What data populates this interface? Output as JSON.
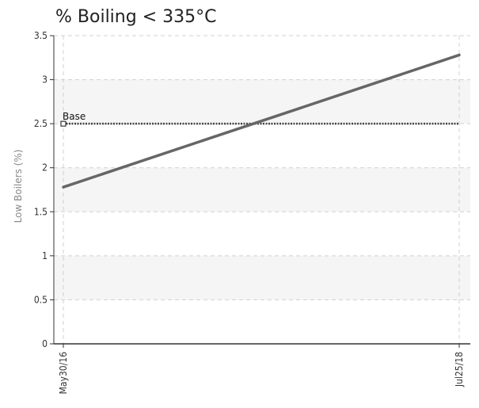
{
  "chart_data": {
    "type": "line",
    "title": "% Boiling < 335°C",
    "xlabel": "",
    "ylabel": "Low Boilers (%)",
    "x": [
      "May30/16",
      "Jul25/18"
    ],
    "ylim": [
      0,
      3.5
    ],
    "y_ticks": [
      "0",
      "0.5",
      "1",
      "1.5",
      "2",
      "2.5",
      "3",
      "3.5"
    ],
    "grid": true,
    "series": [
      {
        "values": [
          1.78,
          3.28
        ],
        "color": "#666666",
        "style": "solid"
      }
    ],
    "reference_lines": [
      {
        "name": "Base",
        "value": 2.5,
        "color": "#444444",
        "style": "dotted"
      }
    ],
    "band_color": "#f5f5f5",
    "grid_color": "#d0d0d0"
  }
}
